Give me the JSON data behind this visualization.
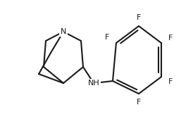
{
  "background": "#ffffff",
  "line_color": "#1a1a1a",
  "line_width": 1.5,
  "text_color": "#1a1a1a",
  "font_size": 8.0,
  "fig_width": 2.74,
  "fig_height": 1.76,
  "dpi": 100,
  "xlim": [
    0,
    274
  ],
  "ylim": [
    0,
    176
  ]
}
